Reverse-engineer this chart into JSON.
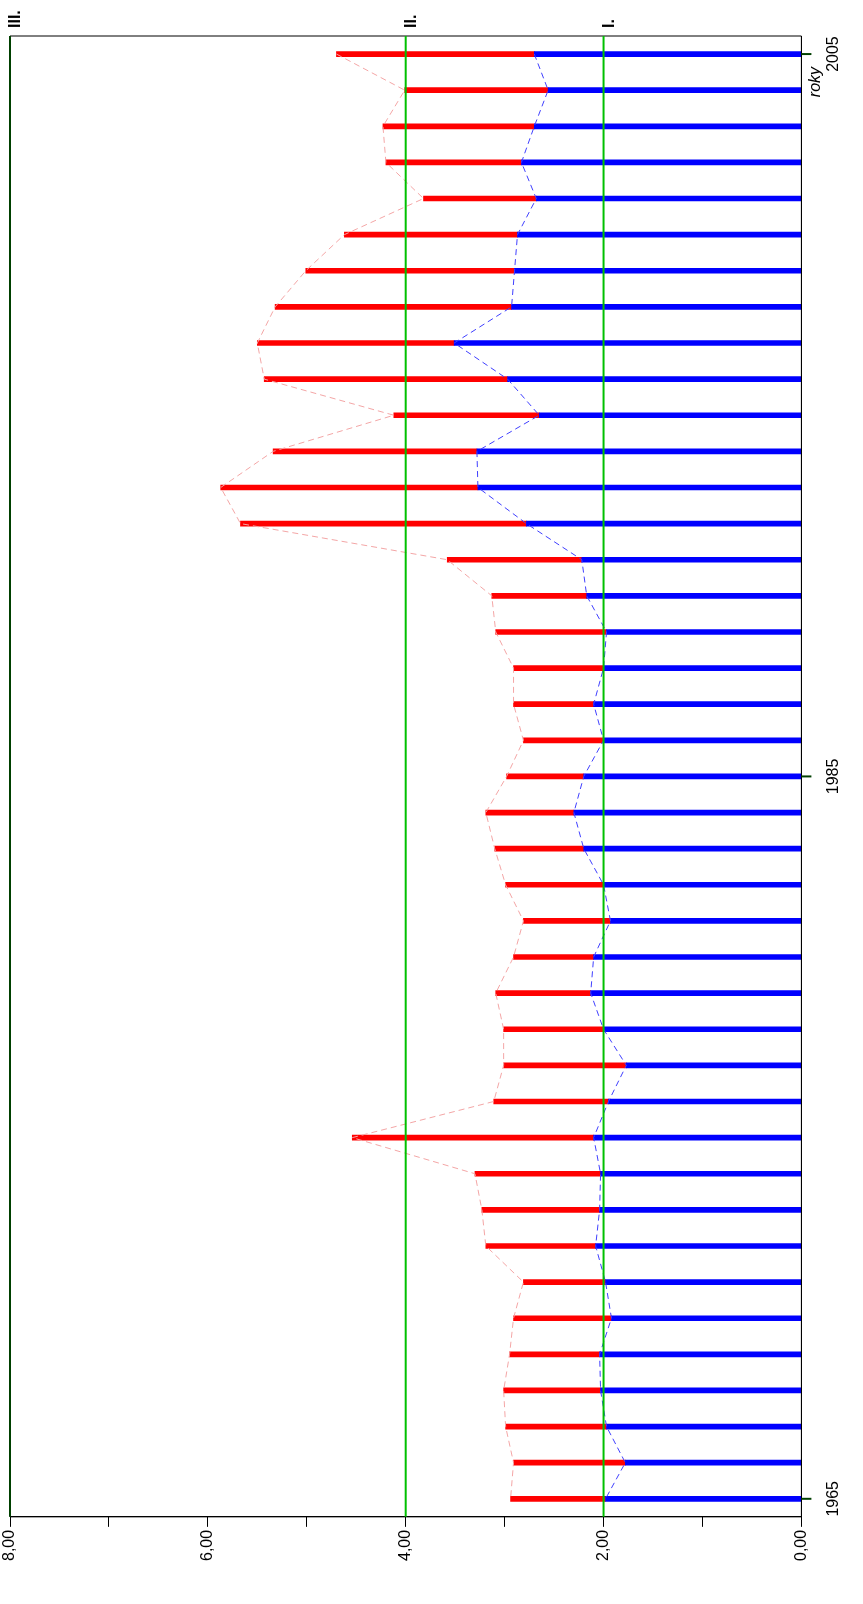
{
  "chart_data": {
    "type": "bar",
    "orientation": "horizontal",
    "stacked": true,
    "ylabel": "roky",
    "categories": [
      "2005",
      null,
      null,
      null,
      null,
      null,
      null,
      null,
      null,
      null,
      null,
      null,
      null,
      null,
      null,
      null,
      null,
      null,
      null,
      null,
      "1985",
      null,
      null,
      null,
      null,
      null,
      null,
      null,
      null,
      null,
      null,
      null,
      null,
      null,
      null,
      null,
      null,
      null,
      null,
      null,
      "1965"
    ],
    "series": [
      {
        "color": "#0000ff",
        "values": [
          2.7,
          2.56,
          2.7,
          2.83,
          2.68,
          2.87,
          2.9,
          2.93,
          3.51,
          2.97,
          2.65,
          3.28,
          3.27,
          2.78,
          2.22,
          2.17,
          1.97,
          2.0,
          2.1,
          2.0,
          2.2,
          2.3,
          2.2,
          2.0,
          1.93,
          2.1,
          2.13,
          2.0,
          1.77,
          1.95,
          2.1,
          2.03,
          2.04,
          2.08,
          1.98,
          1.92,
          2.04,
          2.03,
          1.97,
          1.78,
          1.98
        ]
      },
      {
        "color": "#ff0000",
        "values": [
          2.0,
          1.45,
          1.53,
          1.37,
          1.14,
          1.75,
          2.11,
          2.39,
          1.99,
          2.46,
          1.47,
          2.06,
          2.6,
          2.89,
          1.36,
          0.96,
          1.12,
          0.91,
          0.81,
          0.81,
          0.78,
          0.89,
          0.9,
          0.99,
          0.88,
          0.81,
          0.96,
          1.01,
          1.24,
          1.16,
          2.44,
          1.27,
          1.19,
          1.11,
          0.83,
          0.99,
          0.91,
          0.98,
          1.02,
          1.13,
          0.96
        ]
      },
      {
        "type": "line",
        "line_style": "dashed",
        "marker": "none",
        "color": "#f4a6a6",
        "values": [
          4.7,
          4.01,
          4.23,
          4.2,
          3.82,
          4.62,
          5.01,
          5.32,
          5.5,
          5.43,
          4.12,
          5.34,
          5.87,
          5.67,
          3.58,
          3.13,
          3.09,
          2.91,
          2.91,
          2.81,
          2.98,
          3.19,
          3.1,
          2.99,
          2.81,
          2.91,
          3.09,
          3.01,
          3.01,
          3.11,
          4.54,
          3.3,
          3.23,
          3.19,
          2.81,
          2.91,
          2.95,
          3.01,
          2.99,
          2.91,
          2.94
        ]
      },
      {
        "type": "line",
        "line_style": "dashed",
        "marker": "none",
        "color": "#4040ff",
        "values": [
          2.7,
          2.56,
          2.7,
          2.83,
          2.68,
          2.87,
          2.9,
          2.93,
          3.51,
          2.97,
          2.65,
          3.28,
          3.27,
          2.78,
          2.22,
          2.17,
          1.97,
          2.0,
          2.1,
          2.0,
          2.2,
          2.3,
          2.2,
          2.0,
          1.93,
          2.1,
          2.13,
          2.0,
          1.77,
          1.95,
          2.1,
          2.03,
          2.04,
          2.08,
          1.98,
          1.92,
          2.04,
          2.03,
          1.97,
          1.78,
          1.98
        ]
      }
    ],
    "xlim": [
      8,
      0
    ],
    "xticks": [
      {
        "value": 8,
        "label": "8,00"
      },
      {
        "value": 7,
        "label": null
      },
      {
        "value": 6,
        "label": "6,00"
      },
      {
        "value": 5,
        "label": null
      },
      {
        "value": 4,
        "label": "4,00"
      },
      {
        "value": 3,
        "label": null
      },
      {
        "value": 2,
        "label": "2,00"
      },
      {
        "value": 1,
        "label": null
      },
      {
        "value": 0,
        "label": "0,00"
      }
    ],
    "ref_lines": [
      {
        "axis": "x",
        "value": 2,
        "label": "I.",
        "color": "#00c000"
      },
      {
        "axis": "x",
        "value": 4,
        "label": "II.",
        "color": "#00c000"
      },
      {
        "axis": "x",
        "value": 8,
        "label": "III.",
        "color": "#004000"
      }
    ],
    "grid": false,
    "legend": false
  }
}
